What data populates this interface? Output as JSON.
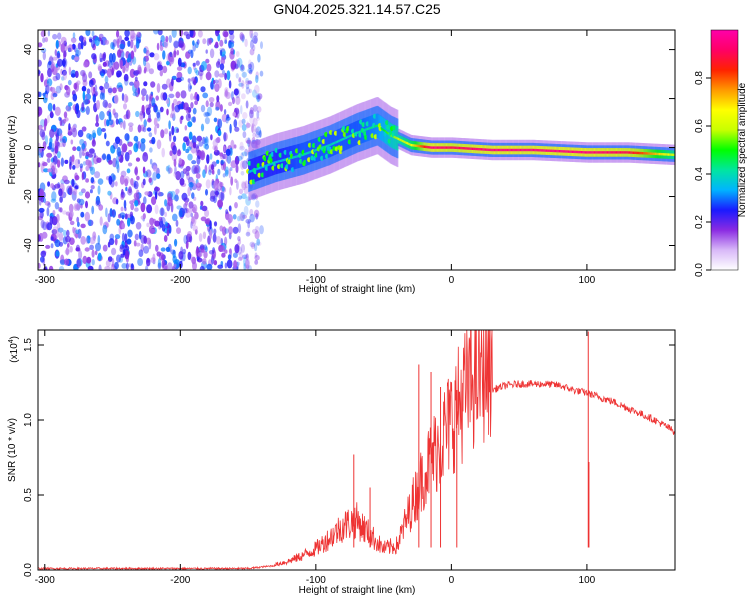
{
  "title": "GN04.2025.321.14.57.C25",
  "chart_data": [
    {
      "type": "heatmap",
      "xlabel": "Height of straight line (km)",
      "ylabel": "Frequency (Hz)",
      "xlim": [
        -305,
        165
      ],
      "ylim": [
        -50,
        48
      ],
      "xticks": [
        -300,
        -200,
        -100,
        0,
        100
      ],
      "yticks": [
        -40,
        -20,
        0,
        20,
        40
      ],
      "colorbar": {
        "label": "Normalized spectral amplitude",
        "range": [
          0,
          1
        ],
        "ticks": [
          "0.0",
          "0.2",
          "0.4",
          "0.6",
          "0.8"
        ],
        "colors": [
          "#ffffff",
          "#d8b8f8",
          "#8a2be2",
          "#1a1aff",
          "#00b4ff",
          "#00e6a0",
          "#00ff00",
          "#c8ff00",
          "#ffff00",
          "#ff9900",
          "#ff2200",
          "#ff0066",
          "#ff00aa"
        ]
      },
      "description_regions": {
        "noise_region_x": [
          -305,
          -148
        ],
        "ridge": {
          "x": [
            -150,
            -130,
            -110,
            -90,
            -70,
            -55,
            -45,
            -30,
            -15,
            0,
            30,
            60,
            100,
            130,
            165
          ],
          "y": [
            -10,
            -6,
            -3,
            1,
            6,
            9,
            5,
            1,
            0,
            0,
            -1,
            -1,
            -2,
            -2,
            -3
          ],
          "amplitude": [
            0.35,
            0.35,
            0.4,
            0.4,
            0.4,
            0.45,
            0.55,
            0.65,
            0.95,
            0.9,
            0.95,
            0.95,
            0.95,
            0.9,
            0.6
          ]
        }
      }
    },
    {
      "type": "line",
      "xlabel": "Height of straight line (km)",
      "ylabel": "SNR (10 * v/v)",
      "scale_label": "(x10",
      "scale_exp": "4",
      "scale_close": ")",
      "xlim": [
        -305,
        165
      ],
      "ylim": [
        0,
        1.6
      ],
      "xticks": [
        -300,
        -200,
        -100,
        0,
        100
      ],
      "yticks": [
        "0.0",
        "0.5",
        "1.0",
        "1.5"
      ],
      "color": "#ee3333",
      "series": [
        {
          "x": [
            -305,
            -250,
            -200,
            -150,
            -140,
            -130,
            -120,
            -110,
            -100,
            -90,
            -80,
            -70,
            -60,
            -50,
            -40,
            -30,
            -20,
            -10,
            0,
            10,
            20,
            30,
            40,
            50,
            60,
            70,
            80,
            90,
            100,
            110,
            120,
            130,
            140,
            150,
            160,
            165
          ],
          "y": [
            0.01,
            0.01,
            0.01,
            0.01,
            0.02,
            0.03,
            0.05,
            0.08,
            0.12,
            0.18,
            0.25,
            0.28,
            0.2,
            0.12,
            0.14,
            0.35,
            0.55,
            0.7,
            0.85,
            1.0,
            1.12,
            1.2,
            1.23,
            1.24,
            1.24,
            1.24,
            1.23,
            1.2,
            1.18,
            1.15,
            1.12,
            1.08,
            1.04,
            1.0,
            0.95,
            0.92
          ]
        }
      ],
      "spikes": [
        {
          "x": -72,
          "y": 0.77
        },
        {
          "x": -60,
          "y": 0.55
        },
        {
          "x": -24,
          "y": 1.37
        },
        {
          "x": -15,
          "y": 1.32
        },
        {
          "x": -8,
          "y": 1.22
        },
        {
          "x": 4,
          "y": 1.2
        },
        {
          "x": 101,
          "y": 1.59
        },
        {
          "x": 101.5,
          "y": 0.72
        }
      ]
    }
  ]
}
